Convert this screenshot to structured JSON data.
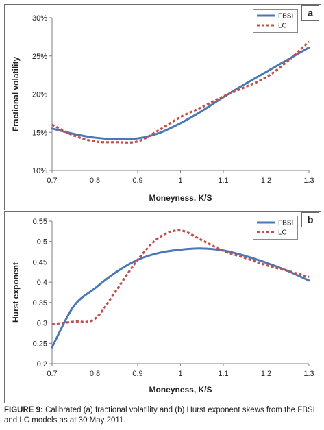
{
  "caption": {
    "label": "FIGURE 9:",
    "text": "Calibrated (a) fractional volatility and (b) Hurst exponent skews from the FBSI and LC models as at 30 May 2011."
  },
  "chart_data": [
    {
      "type": "line",
      "panel_letter": "a",
      "xlabel": "Moneyness, K/S",
      "ylabel": "Fractional volatility",
      "xlim": [
        0.7,
        1.3
      ],
      "ylim": [
        10,
        30
      ],
      "xticks": [
        "0.7",
        "0.8",
        "0.9",
        "1",
        "1.1",
        "1.2",
        "1.3"
      ],
      "yticks": [
        "10%",
        "15%",
        "20%",
        "25%",
        "30%"
      ],
      "x": [
        0.7,
        0.75,
        0.8,
        0.85,
        0.9,
        0.95,
        1.0,
        1.05,
        1.1,
        1.15,
        1.2,
        1.25,
        1.3
      ],
      "series": [
        {
          "name": "FBSI",
          "color": "#4a78b4",
          "style": "solid",
          "values": [
            15.5,
            14.8,
            14.3,
            14.1,
            14.2,
            14.9,
            16.2,
            17.8,
            19.6,
            21.3,
            22.9,
            24.5,
            26.1
          ]
        },
        {
          "name": "LC",
          "color": "#c0504d",
          "style": "dashed",
          "values": [
            16.0,
            14.6,
            13.8,
            13.7,
            13.8,
            15.3,
            17.0,
            18.3,
            19.7,
            20.9,
            22.2,
            24.3,
            26.9
          ]
        }
      ],
      "legend": "top-right",
      "grid": false
    },
    {
      "type": "line",
      "panel_letter": "b",
      "xlabel": "Moneyness, K/S",
      "ylabel": "Hurst exponent",
      "xlim": [
        0.7,
        1.3
      ],
      "ylim": [
        0.2,
        0.55
      ],
      "xticks": [
        "0.7",
        "0.8",
        "0.9",
        "1",
        "1.1",
        "1.2",
        "1.3"
      ],
      "yticks": [
        "0.2",
        "0.25",
        "0.3",
        "0.35",
        "0.4",
        "0.45",
        "0.5",
        "0.55"
      ],
      "x": [
        0.7,
        0.75,
        0.8,
        0.85,
        0.9,
        0.95,
        1.0,
        1.05,
        1.1,
        1.15,
        1.2,
        1.25,
        1.3
      ],
      "series": [
        {
          "name": "FBSI",
          "color": "#4a78b4",
          "style": "solid",
          "values": [
            0.24,
            0.34,
            0.385,
            0.425,
            0.455,
            0.472,
            0.48,
            0.483,
            0.478,
            0.465,
            0.448,
            0.428,
            0.404
          ]
        },
        {
          "name": "LC",
          "color": "#c0504d",
          "style": "dashed",
          "values": [
            0.297,
            0.303,
            0.31,
            0.38,
            0.455,
            0.51,
            0.527,
            0.503,
            0.477,
            0.46,
            0.442,
            0.428,
            0.413
          ]
        }
      ],
      "legend": "top-right",
      "grid": false
    }
  ]
}
